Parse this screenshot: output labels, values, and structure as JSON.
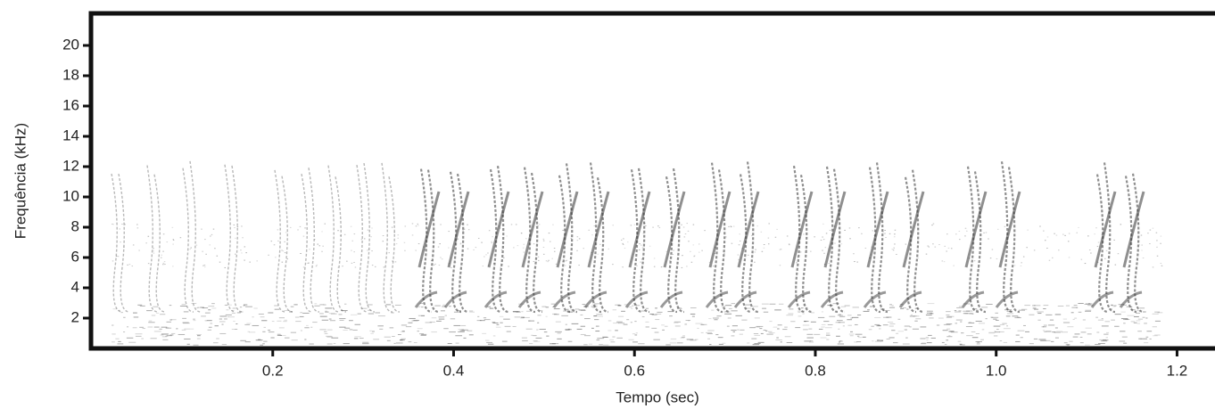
{
  "chart_data": {
    "type": "spectrogram",
    "x_label": "Tempo (sec)",
    "y_label": "Frequência (kHz)",
    "xlim": [
      0,
      1.24
    ],
    "xticks": [
      0.2,
      0.4,
      0.6,
      0.8,
      {
        "value": 1,
        "label": "1.0"
      },
      1.2
    ],
    "ylim": [
      0,
      22
    ],
    "yticks": [
      2,
      4,
      6,
      8,
      10,
      12,
      14,
      16,
      18,
      20
    ],
    "color": "#333333"
  }
}
